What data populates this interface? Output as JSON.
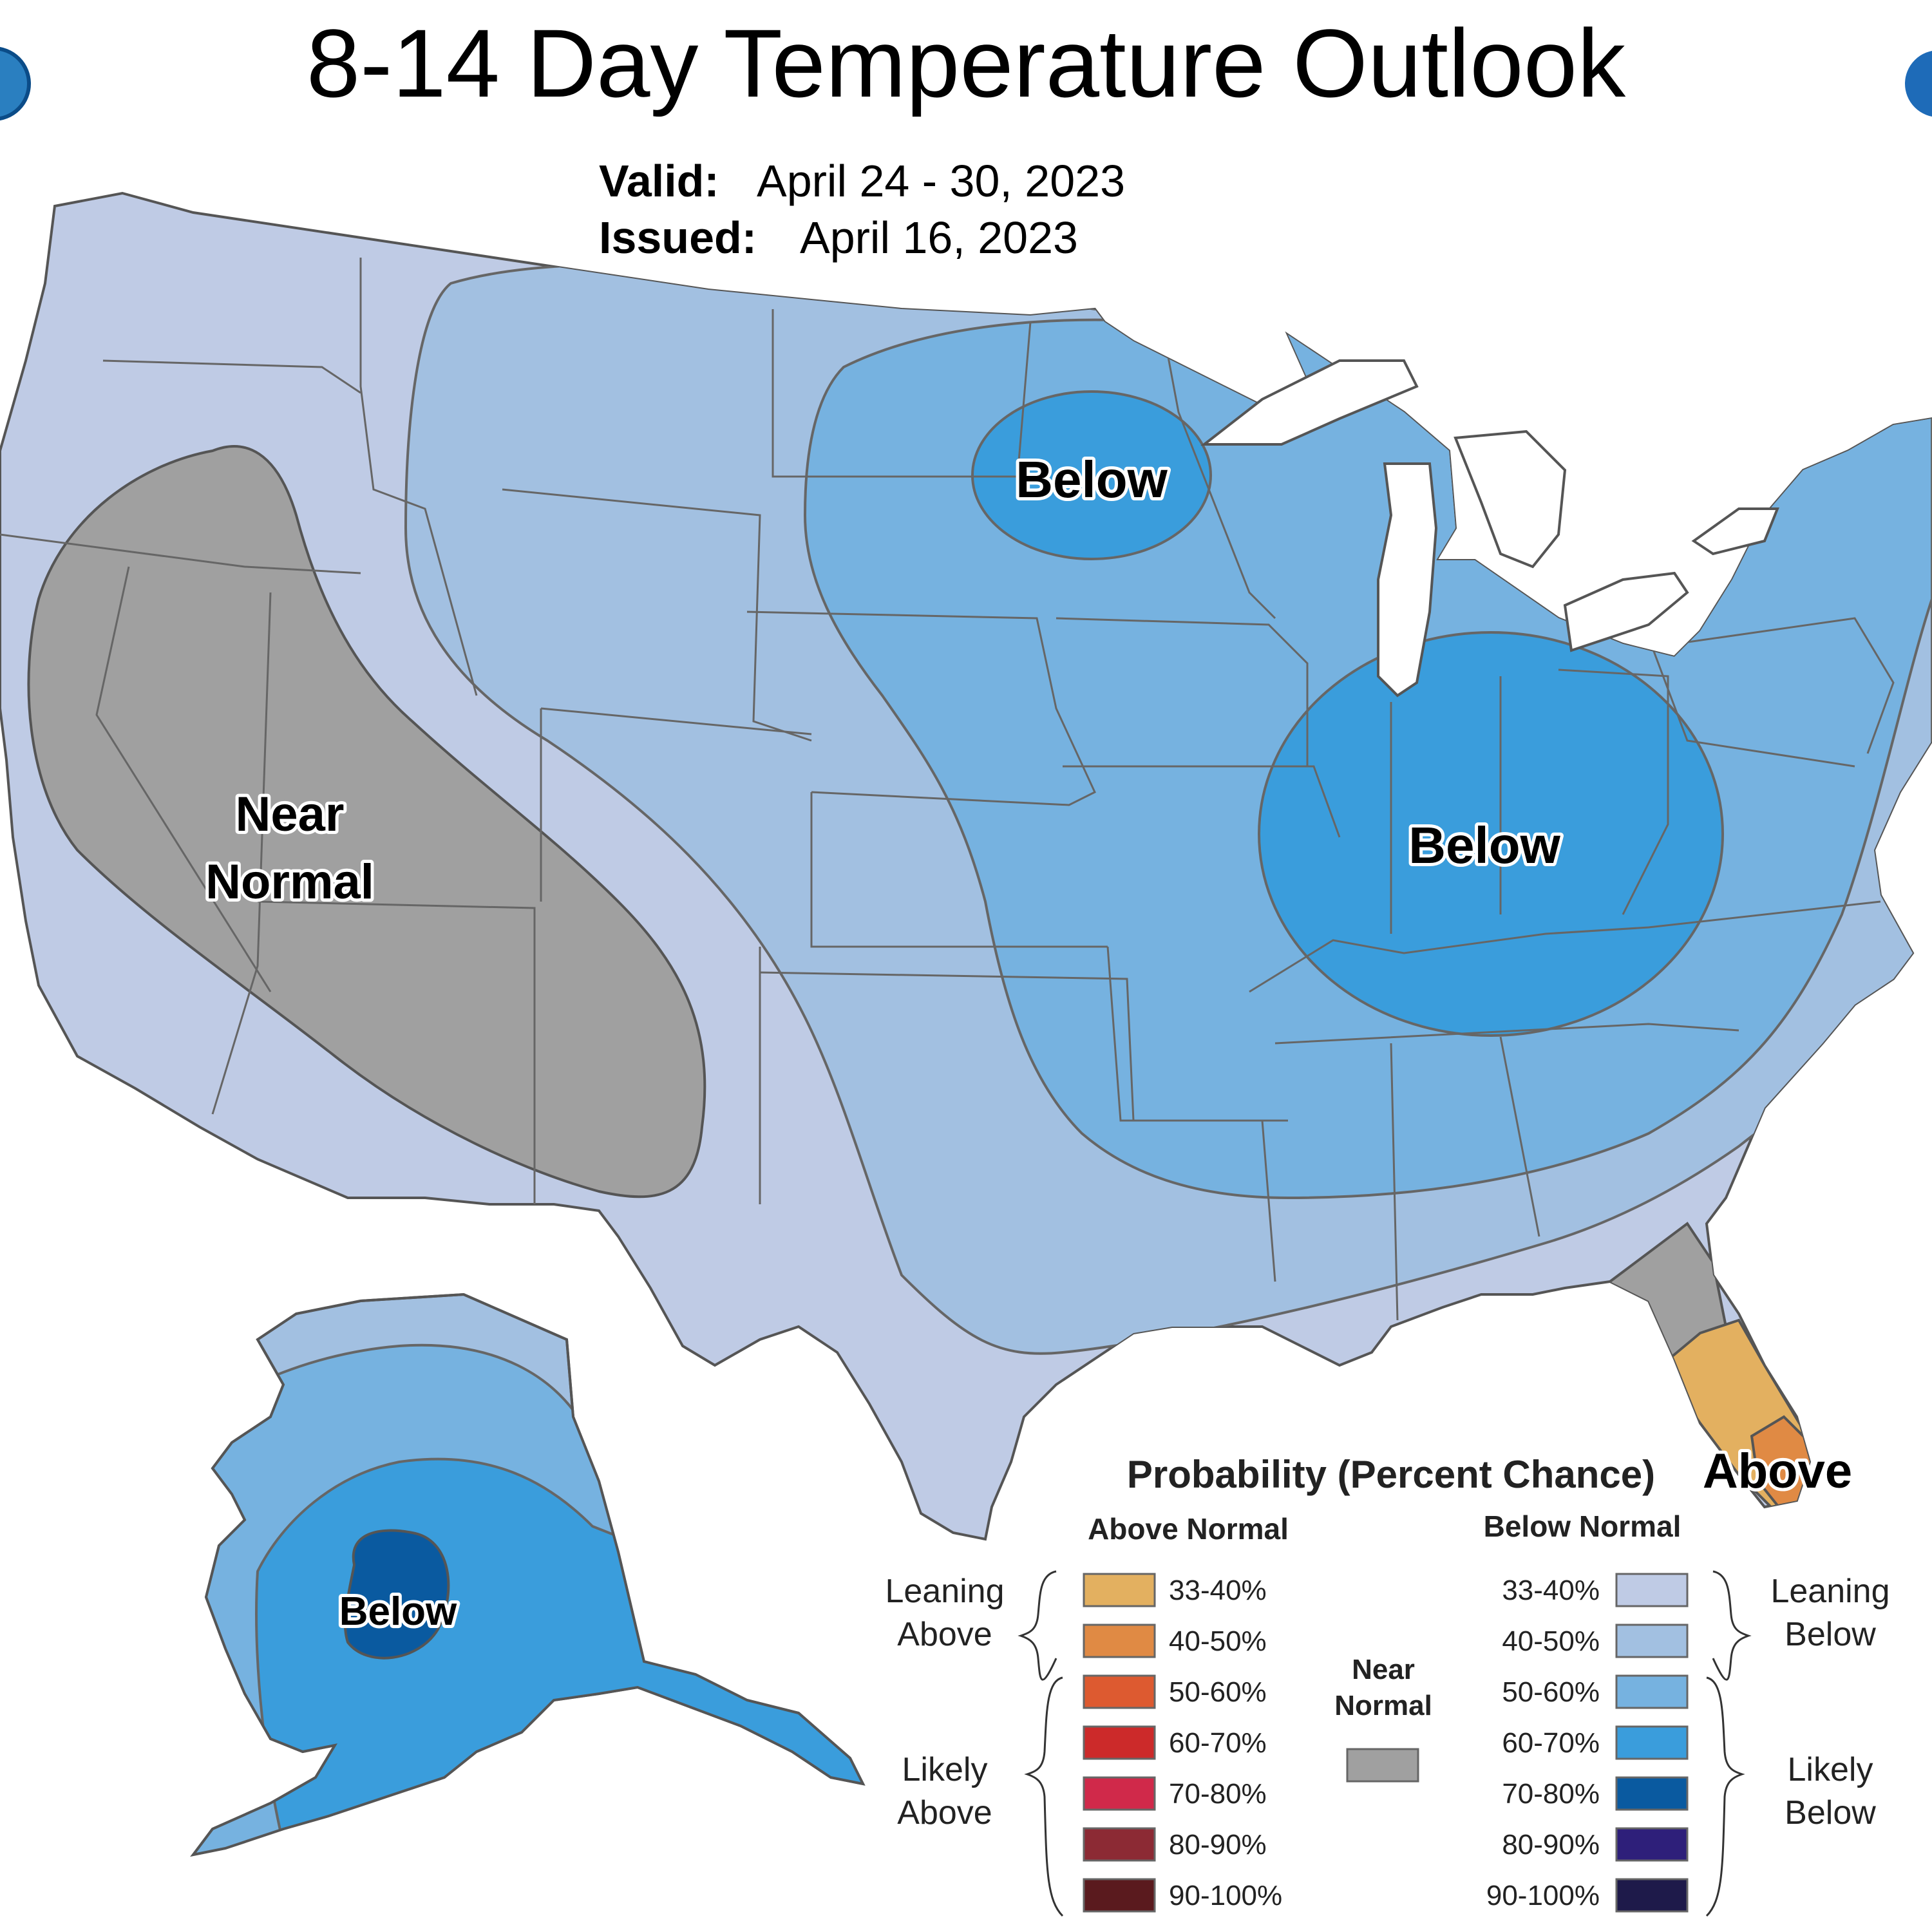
{
  "header": {
    "title": "8-14 Day Temperature Outlook",
    "valid_label": "Valid:",
    "valid_value": "April 24 - 30, 2023",
    "issued_label": "Issued:",
    "issued_value": "April 16, 2023"
  },
  "map": {
    "region_labels": {
      "near_normal_line1": "Near",
      "near_normal_line2": "Normal",
      "below_north": "Below",
      "below_ohio": "Below",
      "below_alaska": "Below",
      "above_florida": "Above"
    },
    "category_colors": {
      "leaning_below_33_40": "#bfcbe5",
      "below_40_50": "#a2c0e1",
      "below_50_60": "#76b2e0",
      "below_60_70": "#3a9ddc",
      "below_70_80": "#0a5aa0",
      "near_normal": "#a0a0a0",
      "above_33_40": "#e3b060",
      "above_40_50": "#e08a44"
    }
  },
  "legend": {
    "title": "Probability (Percent Chance)",
    "above_header": "Above Normal",
    "below_header": "Below Normal",
    "near_normal_line1": "Near",
    "near_normal_line2": "Normal",
    "near_normal_color": "#a0a0a0",
    "leaning_above_line1": "Leaning",
    "leaning_above_line2": "Above",
    "likely_above_line1": "Likely",
    "likely_above_line2": "Above",
    "leaning_below_line1": "Leaning",
    "leaning_below_line2": "Below",
    "likely_below_line1": "Likely",
    "likely_below_line2": "Below",
    "above_items": [
      {
        "label": "33-40%",
        "color": "#e3b060"
      },
      {
        "label": "40-50%",
        "color": "#e08a44"
      },
      {
        "label": "50-60%",
        "color": "#dd5a30"
      },
      {
        "label": "60-70%",
        "color": "#cc2a2a"
      },
      {
        "label": "70-80%",
        "color": "#d0294a"
      },
      {
        "label": "80-90%",
        "color": "#8c2a34"
      },
      {
        "label": "90-100%",
        "color": "#5a1a1e"
      }
    ],
    "below_items": [
      {
        "label": "33-40%",
        "color": "#bfcbe5"
      },
      {
        "label": "40-50%",
        "color": "#a2c0e1"
      },
      {
        "label": "50-60%",
        "color": "#76b2e0"
      },
      {
        "label": "60-70%",
        "color": "#3a9ddc"
      },
      {
        "label": "70-80%",
        "color": "#0a5aa0"
      },
      {
        "label": "80-90%",
        "color": "#2e1f7a"
      },
      {
        "label": "90-100%",
        "color": "#1e1a4a"
      }
    ]
  }
}
